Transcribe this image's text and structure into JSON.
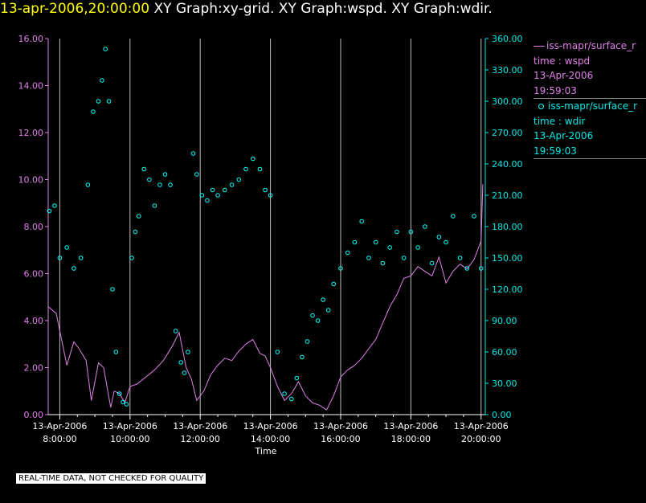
{
  "header": {
    "time": "13-apr-2006,20:00:00",
    "graphs": "XY Graph:xy-grid.  XY Graph:wspd.  XY Graph:wdir."
  },
  "note": "REAL-TIME DATA, NOT CHECKED FOR QUALITY",
  "legend": {
    "wspd": {
      "source": "iss-mapr/surface_r",
      "var": "time : wspd",
      "date": "13-Apr-2006",
      "time": "19:59:03"
    },
    "wdir": {
      "source": "iss-mapr/surface_r",
      "var": "time : wdir",
      "date": "13-Apr-2006",
      "time": "19:59:03"
    }
  },
  "colors": {
    "wspd": "#e080e8",
    "wdir": "#00ffff",
    "grid": "#bbbbbb",
    "axis_left": "#e080e8",
    "axis_right": "#00e8e8",
    "time_axis": "#ffffff"
  },
  "chart_data": {
    "type": "line+scatter",
    "xlabel": "Time",
    "x_range_hours": [
      7.67,
      20.12
    ],
    "x_ticks": [
      {
        "hour": 8,
        "date": "13-Apr-2006",
        "time": "8:00:00"
      },
      {
        "hour": 10,
        "date": "13-Apr-2006",
        "time": "10:00:00"
      },
      {
        "hour": 12,
        "date": "13-Apr-2006",
        "time": "12:00:00"
      },
      {
        "hour": 14,
        "date": "13-Apr-2006",
        "time": "14:00:00"
      },
      {
        "hour": 16,
        "date": "13-Apr-2006",
        "time": "16:00:00"
      },
      {
        "hour": 18,
        "date": "13-Apr-2006",
        "time": "18:00:00"
      },
      {
        "hour": 20,
        "date": "13-Apr-2006",
        "time": "20:00:00"
      }
    ],
    "left_axis": {
      "name": "wspd",
      "ylim": [
        0,
        16
      ],
      "ticks": [
        "0.00",
        "2.00",
        "4.00",
        "6.00",
        "8.00",
        "10.00",
        "12.00",
        "14.00",
        "16.00"
      ]
    },
    "right_axis": {
      "name": "wdir",
      "ylim": [
        0,
        360
      ],
      "ticks": [
        "0.00",
        "30.00",
        "60.00",
        "90.00",
        "120.00",
        "150.00",
        "180.00",
        "210.00",
        "240.00",
        "270.00",
        "300.00",
        "330.00",
        "360.00"
      ]
    },
    "wspd_series": {
      "name": "wspd",
      "style": "line",
      "hours": [
        7.67,
        7.9,
        8.2,
        8.4,
        8.55,
        8.75,
        8.9,
        9.1,
        9.25,
        9.45,
        9.55,
        9.7,
        9.85,
        10.0,
        10.2,
        10.45,
        10.7,
        10.95,
        11.2,
        11.4,
        11.6,
        11.75,
        11.9,
        12.1,
        12.3,
        12.5,
        12.7,
        12.9,
        13.1,
        13.3,
        13.5,
        13.7,
        13.85,
        14.0,
        14.2,
        14.4,
        14.6,
        14.8,
        15.0,
        15.2,
        15.4,
        15.6,
        15.8,
        16.0,
        16.2,
        16.4,
        16.6,
        16.8,
        17.0,
        17.2,
        17.4,
        17.6,
        17.8,
        18.0,
        18.2,
        18.4,
        18.6,
        18.8,
        19.0,
        19.2,
        19.4,
        19.6,
        19.8,
        20.0,
        20.05
      ],
      "values": [
        4.6,
        4.3,
        2.1,
        3.1,
        2.8,
        2.3,
        0.6,
        2.2,
        2.0,
        0.3,
        1.0,
        0.9,
        0.5,
        1.2,
        1.3,
        1.6,
        1.9,
        2.3,
        2.9,
        3.5,
        2.0,
        1.5,
        0.6,
        1.0,
        1.7,
        2.1,
        2.4,
        2.3,
        2.7,
        3.0,
        3.2,
        2.6,
        2.5,
        2.0,
        1.2,
        0.6,
        0.9,
        1.4,
        0.8,
        0.5,
        0.4,
        0.2,
        0.8,
        1.6,
        1.9,
        2.1,
        2.4,
        2.8,
        3.2,
        3.9,
        4.6,
        5.1,
        5.8,
        5.9,
        6.3,
        6.1,
        5.9,
        6.7,
        5.6,
        6.1,
        6.4,
        6.2,
        6.6,
        7.4,
        9.8
      ]
    },
    "wdir_series": {
      "name": "wdir",
      "style": "scatter",
      "hours": [
        7.7,
        7.85,
        8.0,
        8.2,
        8.4,
        8.6,
        8.8,
        8.95,
        9.1,
        9.2,
        9.3,
        9.4,
        9.5,
        9.6,
        9.7,
        9.8,
        9.9,
        10.05,
        10.15,
        10.25,
        10.4,
        10.55,
        10.7,
        10.85,
        11.0,
        11.15,
        11.3,
        11.45,
        11.55,
        11.65,
        11.8,
        11.9,
        12.05,
        12.2,
        12.35,
        12.5,
        12.7,
        12.9,
        13.1,
        13.3,
        13.5,
        13.7,
        13.85,
        14.0,
        14.2,
        14.4,
        14.6,
        14.75,
        14.9,
        15.05,
        15.2,
        15.35,
        15.5,
        15.65,
        15.8,
        16.0,
        16.2,
        16.4,
        16.6,
        16.8,
        17.0,
        17.2,
        17.4,
        17.6,
        17.8,
        18.0,
        18.2,
        18.4,
        18.6,
        18.8,
        19.0,
        19.2,
        19.4,
        19.6,
        19.8,
        20.0
      ],
      "values": [
        195,
        200,
        150,
        160,
        140,
        150,
        220,
        290,
        300,
        320,
        350,
        300,
        120,
        60,
        20,
        12,
        10,
        150,
        175,
        190,
        235,
        225,
        200,
        220,
        230,
        220,
        80,
        50,
        40,
        60,
        250,
        230,
        210,
        205,
        215,
        210,
        215,
        220,
        225,
        235,
        245,
        235,
        215,
        210,
        60,
        20,
        15,
        35,
        55,
        70,
        95,
        90,
        110,
        100,
        125,
        140,
        155,
        165,
        185,
        150,
        165,
        145,
        160,
        175,
        150,
        175,
        160,
        180,
        145,
        170,
        165,
        190,
        150,
        140,
        190,
        140
      ]
    }
  }
}
